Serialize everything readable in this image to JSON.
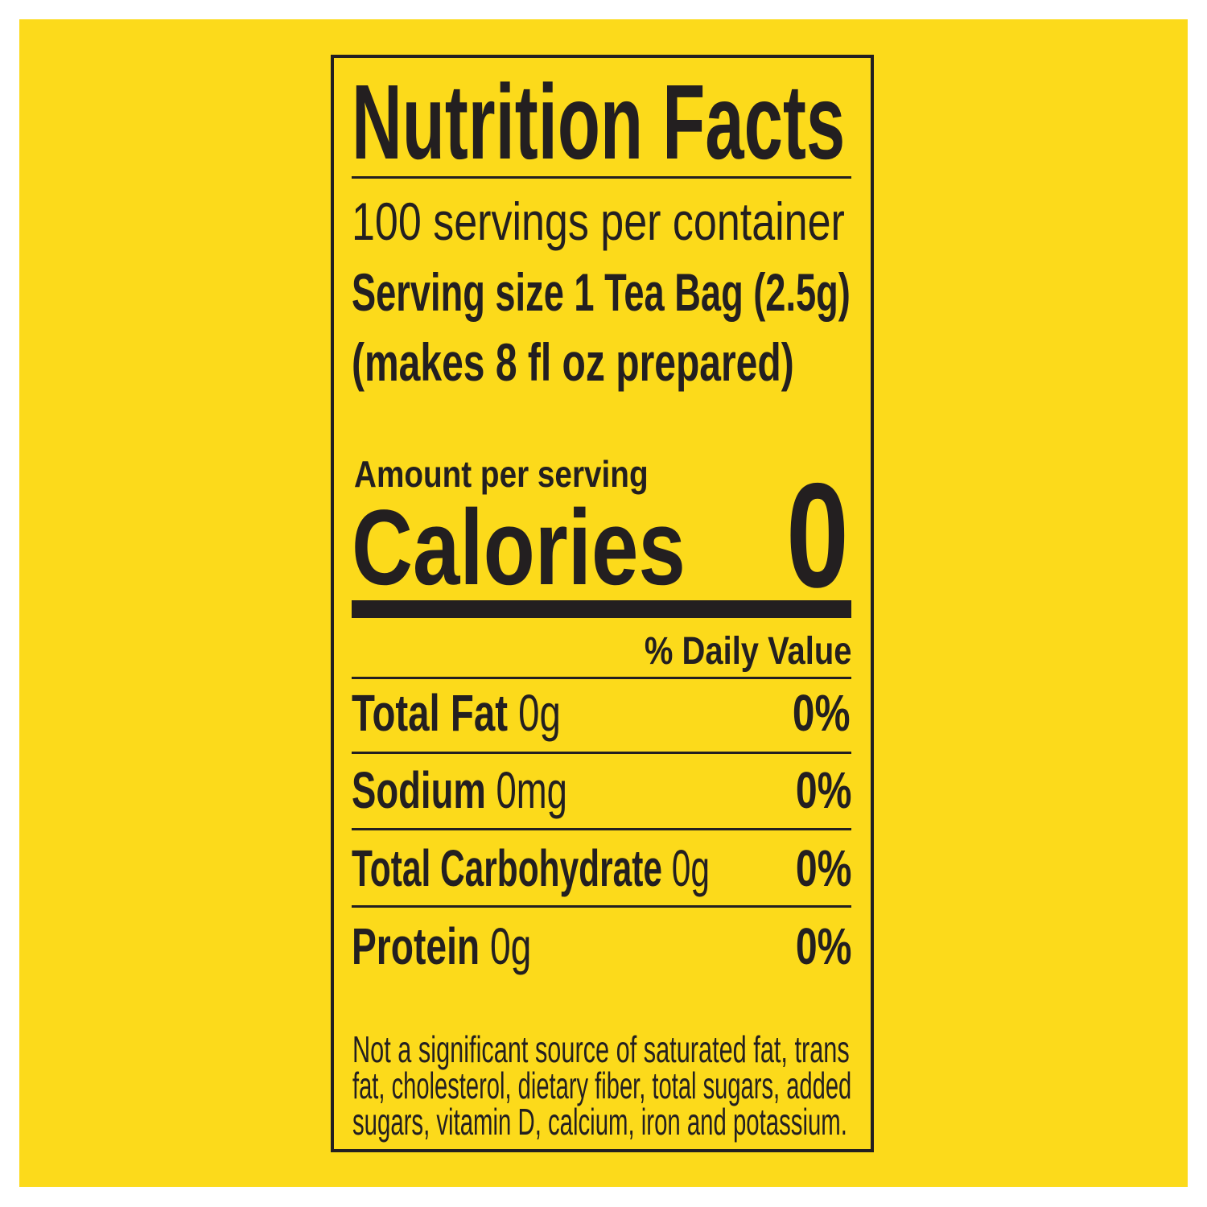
{
  "title": "Nutrition Facts",
  "servings_per_container": "100 servings per container",
  "serving_size": "Serving size 1 Tea Bag (2.5g)",
  "serving_note": "(makes 8 fl oz prepared)",
  "amount_per_serving": "Amount per serving",
  "calories_label": "Calories",
  "calories_value": "0",
  "daily_value_header": "% Daily Value",
  "nutrients": [
    {
      "name": "Total Fat",
      "amount": "0g",
      "dv": "0%"
    },
    {
      "name": "Sodium",
      "amount": "0mg",
      "dv": "0%"
    },
    {
      "name": "Total Carbohydrate",
      "amount": "0g",
      "dv": "0%"
    },
    {
      "name": "Protein",
      "amount": "0g",
      "dv": "0%"
    }
  ],
  "footnote": [
    "Not a significant source of saturated fat, trans",
    "fat, cholesterol, dietary fiber, total sugars, added",
    "sugars, vitamin D, calcium, iron and potassium."
  ],
  "colors": {
    "background": "#fcda1b",
    "ink": "#231f20"
  }
}
